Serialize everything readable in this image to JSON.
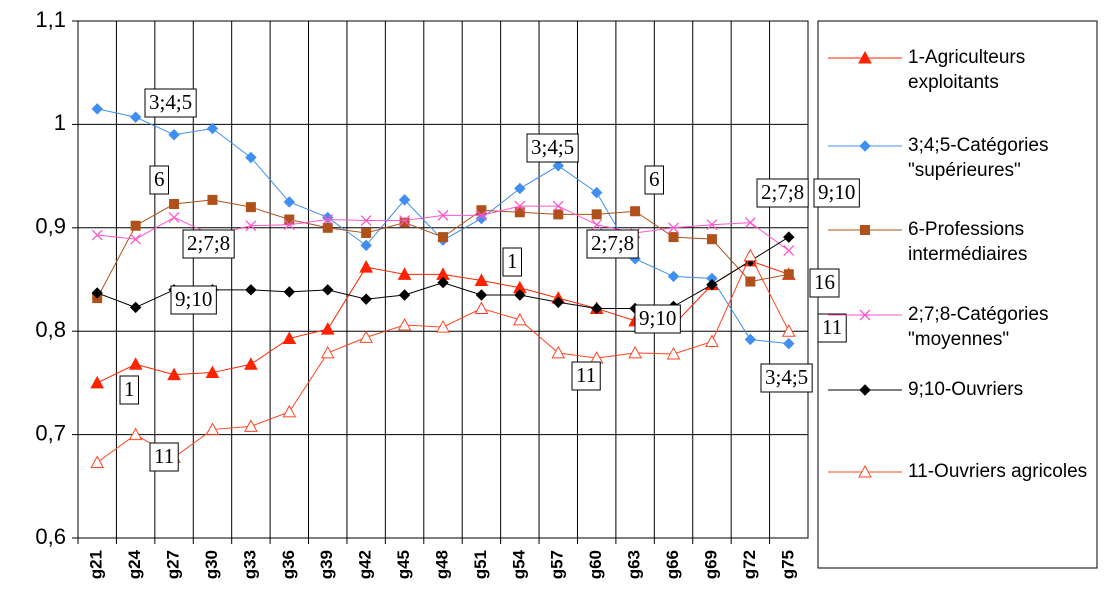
{
  "chart_data": {
    "type": "line",
    "categories": [
      "g21",
      "g24",
      "g27",
      "g30",
      "g33",
      "g36",
      "g39",
      "g42",
      "g45",
      "g48",
      "g51",
      "g54",
      "g57",
      "g60",
      "g63",
      "g66",
      "g69",
      "g72",
      "g75"
    ],
    "ylim": [
      0.6,
      1.1
    ],
    "yticks": [
      {
        "value": 0.6,
        "label": "0,6"
      },
      {
        "value": 0.7,
        "label": "0,7"
      },
      {
        "value": 0.8,
        "label": "0,8"
      },
      {
        "value": 0.9,
        "label": "0,9"
      },
      {
        "value": 1,
        "label": "1"
      },
      {
        "value": 1.1,
        "label": "1,1"
      }
    ],
    "grid": true,
    "legend": "right",
    "series": [
      {
        "name": "1-Agriculteurs exploitants",
        "color": "#ff2200",
        "marker": "triangle",
        "values": [
          0.75,
          0.768,
          0.758,
          0.76,
          0.768,
          0.793,
          0.802,
          0.862,
          0.855,
          0.855,
          0.849,
          0.842,
          0.832,
          0.822,
          0.81,
          0.806,
          0.845,
          0.868,
          0.855
        ]
      },
      {
        "name": "3;4;5-Catégories \"supérieures\"",
        "color": "#3f8ff0",
        "marker": "diamond",
        "values": [
          1.015,
          1.007,
          0.99,
          0.996,
          0.968,
          0.925,
          0.91,
          0.883,
          0.927,
          0.888,
          0.909,
          0.938,
          0.96,
          0.934,
          0.87,
          0.853,
          0.851,
          0.792,
          0.788
        ]
      },
      {
        "name": "6-Professions intermédiaires",
        "color": "#b0501a",
        "marker": "square",
        "values": [
          0.832,
          0.902,
          0.923,
          0.927,
          0.92,
          0.908,
          0.9,
          0.895,
          0.905,
          0.891,
          0.917,
          0.915,
          0.913,
          0.913,
          0.916,
          0.891,
          0.889,
          0.848,
          0.855
        ]
      },
      {
        "name": "2;7;8-Catégories \"moyennes\"",
        "color": "#ff55cc",
        "marker": "x",
        "values": [
          0.893,
          0.889,
          0.91,
          0.893,
          0.902,
          0.903,
          0.908,
          0.907,
          0.907,
          0.912,
          0.912,
          0.921,
          0.921,
          0.903,
          0.895,
          0.9,
          0.903,
          0.905,
          0.878
        ]
      },
      {
        "name": "9;10-Ouvriers",
        "color": "#000000",
        "marker": "diamond",
        "values": [
          0.837,
          0.823,
          0.84,
          0.84,
          0.84,
          0.838,
          0.84,
          0.831,
          0.835,
          0.847,
          0.835,
          0.835,
          0.828,
          0.822,
          0.822,
          0.824,
          0.845,
          0.868,
          0.891
        ]
      },
      {
        "name": "11-Ouvriers agricoles",
        "color": "#ff4422",
        "marker": "triangle-open",
        "values": [
          0.673,
          0.7,
          0.678,
          0.705,
          0.708,
          0.722,
          0.779,
          0.794,
          0.806,
          0.804,
          0.822,
          0.811,
          0.779,
          0.774,
          0.779,
          0.778,
          0.79,
          0.873,
          0.8
        ]
      }
    ],
    "annotations": [
      "3;4;5",
      "6",
      "2;7;8",
      "9;10",
      "1",
      "11",
      "3;4;5",
      "1",
      "2;7;8",
      "9;10",
      "11",
      "6",
      "2;7;8",
      "9;10",
      "3;4;5",
      "16",
      "11"
    ]
  }
}
